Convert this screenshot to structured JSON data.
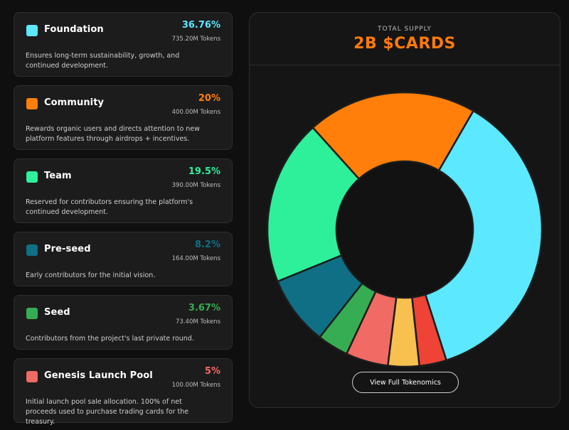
{
  "allocations": [
    {
      "name": "Foundation",
      "percent": "36.76%",
      "tokens": "735.20M Tokens",
      "description": "Ensures long-term sustainability, growth, and continued development.",
      "color": "#5ce8ff"
    },
    {
      "name": "Community",
      "percent": "20%",
      "tokens": "400.00M Tokens",
      "description": "Rewards organic users and directs attention to new platform features through airdrops + incentives.",
      "color": "#ff7f0a"
    },
    {
      "name": "Team",
      "percent": "19.5%",
      "tokens": "390.00M Tokens",
      "description": "Reserved for contributors ensuring the platform's continued development.",
      "color": "#2ef09a"
    },
    {
      "name": "Pre-seed",
      "percent": "8.2%",
      "tokens": "164.00M Tokens",
      "description": "Early contributors for the initial vision.",
      "color": "#0e6f85"
    },
    {
      "name": "Seed",
      "percent": "3.67%",
      "tokens": "73.40M Tokens",
      "description": "Contributors from the project's last private round.",
      "color": "#36ad52"
    },
    {
      "name": "Genesis Launch Pool",
      "percent": "5%",
      "tokens": "100.00M Tokens",
      "description": "Initial launch pool sale allocation. 100% of net proceeds used to purchase trading cards for the treasury.",
      "color": "#f06b63"
    }
  ],
  "supply": {
    "label": "TOTAL SUPPLY",
    "value": "2B $CARDS"
  },
  "cta_label": "View Full Tokenomics",
  "chart_data": {
    "type": "pie",
    "labels": [
      "Foundation",
      "",
      "",
      "Genesis Launch Pool",
      "Seed",
      "Pre-seed",
      "Team",
      "Community"
    ],
    "values": [
      36.76,
      3.2,
      3.67,
      5,
      3.67,
      8.2,
      19.5,
      20
    ],
    "colors": [
      "#5ce8ff",
      "#ee4336",
      "#f7c04f",
      "#f06b63",
      "#36ad52",
      "#0e6f85",
      "#2ef09a",
      "#ff7f0a"
    ],
    "start_angle_deg": -60,
    "direction": "clockwise",
    "donut": true
  }
}
